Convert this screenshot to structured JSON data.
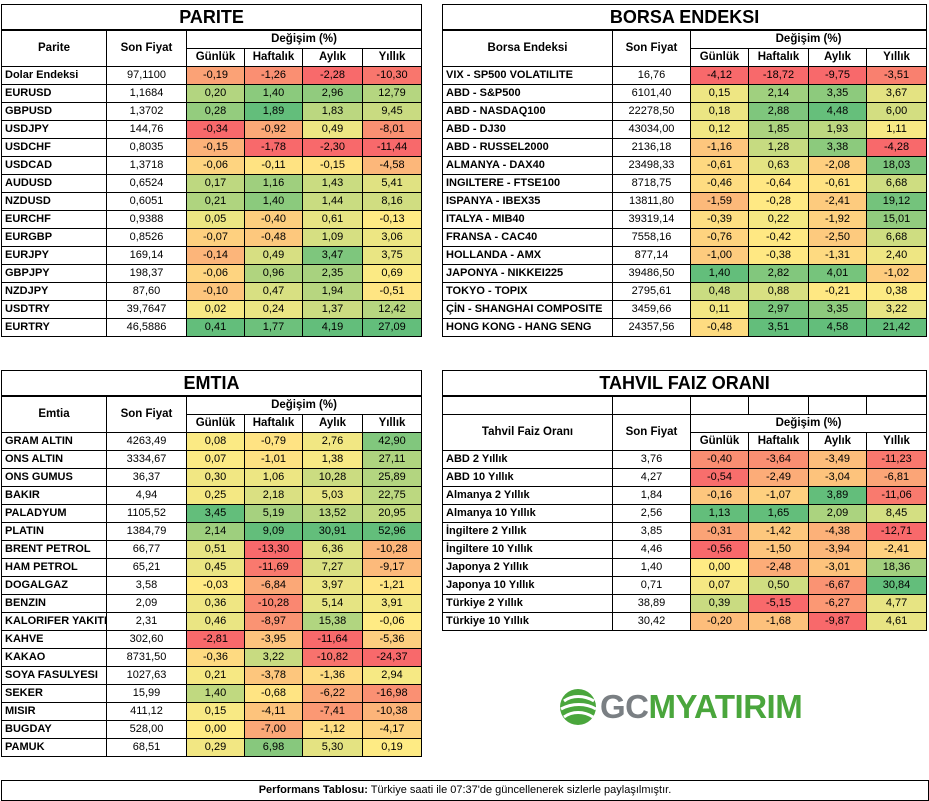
{
  "columns": {
    "change_header": "Değişim (%)",
    "price": "Son Fiyat",
    "daily": "Günlük",
    "weekly": "Haftalık",
    "monthly": "Aylık",
    "yearly": "Yıllık"
  },
  "parite": {
    "title": "PARITE",
    "name_header": "Parite",
    "rows": [
      {
        "name": "Dolar Endeksi",
        "price": "97,1100",
        "values": [
          "-0,19",
          "-1,26",
          "-2,28",
          "-10,30"
        ]
      },
      {
        "name": "EURUSD",
        "price": "1,1684",
        "values": [
          "0,20",
          "1,40",
          "2,96",
          "12,79"
        ]
      },
      {
        "name": "GBPUSD",
        "price": "1,3702",
        "values": [
          "0,28",
          "1,89",
          "1,83",
          "9,45"
        ]
      },
      {
        "name": "USDJPY",
        "price": "144,76",
        "values": [
          "-0,34",
          "-0,92",
          "0,49",
          "-8,01"
        ]
      },
      {
        "name": "USDCHF",
        "price": "0,8035",
        "values": [
          "-0,15",
          "-1,78",
          "-2,30",
          "-11,44"
        ]
      },
      {
        "name": "USDCAD",
        "price": "1,3718",
        "values": [
          "-0,06",
          "-0,11",
          "-0,15",
          "-4,58"
        ]
      },
      {
        "name": "AUDUSD",
        "price": "0,6524",
        "values": [
          "0,17",
          "1,16",
          "1,43",
          "5,41"
        ]
      },
      {
        "name": "NZDUSD",
        "price": "0,6051",
        "values": [
          "0,21",
          "1,40",
          "1,44",
          "8,16"
        ]
      },
      {
        "name": "EURCHF",
        "price": "0,9388",
        "values": [
          "0,05",
          "-0,40",
          "0,61",
          "-0,13"
        ]
      },
      {
        "name": "EURGBP",
        "price": "0,8526",
        "values": [
          "-0,07",
          "-0,48",
          "1,09",
          "3,06"
        ]
      },
      {
        "name": "EURJPY",
        "price": "169,14",
        "values": [
          "-0,14",
          "0,49",
          "3,47",
          "3,75"
        ]
      },
      {
        "name": "GBPJPY",
        "price": "198,37",
        "values": [
          "-0,06",
          "0,96",
          "2,35",
          "0,69"
        ]
      },
      {
        "name": "NZDJPY",
        "price": "87,60",
        "values": [
          "-0,10",
          "0,47",
          "1,94",
          "-0,51"
        ]
      },
      {
        "name": "USDTRY",
        "price": "39,7647",
        "values": [
          "0,02",
          "0,24",
          "1,37",
          "12,42"
        ]
      },
      {
        "name": "EURTRY",
        "price": "46,5886",
        "values": [
          "0,41",
          "1,77",
          "4,19",
          "27,09"
        ]
      }
    ]
  },
  "borsa": {
    "title": "BORSA ENDEKSI",
    "name_header": "Borsa Endeksi",
    "rows": [
      {
        "name": "VIX  - SP500 VOLATILITE",
        "price": "16,76",
        "values": [
          "-4,12",
          "-18,72",
          "-9,75",
          "-3,51"
        ]
      },
      {
        "name": "ABD - S&P500",
        "price": "6101,40",
        "values": [
          "0,15",
          "2,14",
          "3,35",
          "3,67"
        ]
      },
      {
        "name": "ABD - NASDAQ100",
        "price": "22278,50",
        "values": [
          "0,18",
          "2,88",
          "4,48",
          "6,00"
        ]
      },
      {
        "name": "ABD - DJ30",
        "price": "43034,00",
        "values": [
          "0,12",
          "1,85",
          "1,93",
          "1,11"
        ]
      },
      {
        "name": "ABD - RUSSEL2000",
        "price": "2136,18",
        "values": [
          "-1,16",
          "1,28",
          "3,38",
          "-4,28"
        ]
      },
      {
        "name": "ALMANYA - DAX40",
        "price": "23498,33",
        "values": [
          "-0,61",
          "0,63",
          "-2,08",
          "18,03"
        ]
      },
      {
        "name": "INGILTERE - FTSE100",
        "price": "8718,75",
        "values": [
          "-0,46",
          "-0,64",
          "-0,61",
          "6,68"
        ]
      },
      {
        "name": "ISPANYA - IBEX35",
        "price": "13811,80",
        "values": [
          "-1,59",
          "-0,28",
          "-2,41",
          "19,12"
        ]
      },
      {
        "name": "ITALYA - MIB40",
        "price": "39319,14",
        "values": [
          "-0,39",
          "0,22",
          "-1,92",
          "15,01"
        ]
      },
      {
        "name": "FRANSA - CAC40",
        "price": "7558,16",
        "values": [
          "-0,76",
          "-0,42",
          "-2,50",
          "6,68"
        ]
      },
      {
        "name": "HOLLANDA - AMX",
        "price": "877,14",
        "values": [
          "-1,00",
          "-0,38",
          "-1,31",
          "2,40"
        ]
      },
      {
        "name": "JAPONYA - NIKKEI225",
        "price": "39486,50",
        "values": [
          "1,40",
          "2,82",
          "4,01",
          "-1,02"
        ]
      },
      {
        "name": "TOKYO - TOPIX",
        "price": "2795,61",
        "values": [
          "0,48",
          "0,88",
          "-0,21",
          "0,38"
        ]
      },
      {
        "name": "ÇİN - SHANGHAI COMPOSITE",
        "price": "3459,66",
        "values": [
          "0,11",
          "2,97",
          "3,35",
          "3,22"
        ]
      },
      {
        "name": "HONG KONG - HANG SENG",
        "price": "24357,56",
        "values": [
          "-0,48",
          "3,51",
          "4,58",
          "21,42"
        ]
      }
    ]
  },
  "emtia": {
    "title": "EMTIA",
    "name_header": "Emtia",
    "rows": [
      {
        "name": "GRAM ALTIN",
        "price": "4263,49",
        "values": [
          "0,08",
          "-0,79",
          "2,76",
          "42,90"
        ]
      },
      {
        "name": "ONS ALTIN",
        "price": "3334,67",
        "values": [
          "0,07",
          "-1,01",
          "1,38",
          "27,11"
        ]
      },
      {
        "name": "ONS GUMUS",
        "price": "36,37",
        "values": [
          "0,30",
          "1,06",
          "10,28",
          "25,89"
        ]
      },
      {
        "name": "BAKIR",
        "price": "4,94",
        "values": [
          "0,25",
          "2,18",
          "5,03",
          "22,75"
        ]
      },
      {
        "name": "PALADYUM",
        "price": "1105,52",
        "values": [
          "3,45",
          "5,19",
          "13,52",
          "20,95"
        ]
      },
      {
        "name": "PLATIN",
        "price": "1384,79",
        "values": [
          "2,14",
          "9,09",
          "30,91",
          "52,96"
        ]
      },
      {
        "name": "BRENT PETROL",
        "price": "66,77",
        "values": [
          "0,51",
          "-13,30",
          "6,36",
          "-10,28"
        ]
      },
      {
        "name": "HAM PETROL",
        "price": "65,21",
        "values": [
          "0,45",
          "-11,69",
          "7,27",
          "-9,17"
        ]
      },
      {
        "name": "DOGALGAZ",
        "price": "3,58",
        "values": [
          "-0,03",
          "-6,84",
          "3,97",
          "-1,21"
        ]
      },
      {
        "name": "BENZIN",
        "price": "2,09",
        "values": [
          "0,36",
          "-10,28",
          "5,14",
          "3,91"
        ]
      },
      {
        "name": "KALORIFER YAKITI",
        "price": "2,31",
        "values": [
          "0,46",
          "-8,97",
          "15,38",
          "-0,06"
        ]
      },
      {
        "name": "KAHVE",
        "price": "302,60",
        "values": [
          "-2,81",
          "-3,95",
          "-11,64",
          "-5,36"
        ]
      },
      {
        "name": "KAKAO",
        "price": "8731,50",
        "values": [
          "-0,36",
          "3,22",
          "-10,82",
          "-24,37"
        ]
      },
      {
        "name": "SOYA FASULYESI",
        "price": "1027,63",
        "values": [
          "0,21",
          "-3,78",
          "-1,36",
          "2,94"
        ]
      },
      {
        "name": "SEKER",
        "price": "15,99",
        "values": [
          "1,40",
          "-0,68",
          "-6,22",
          "-16,98"
        ]
      },
      {
        "name": "MISIR",
        "price": "411,12",
        "values": [
          "0,15",
          "-4,11",
          "-7,41",
          "-10,38"
        ]
      },
      {
        "name": "BUGDAY",
        "price": "528,00",
        "values": [
          "0,00",
          "-7,00",
          "-1,12",
          "-4,17"
        ]
      },
      {
        "name": "PAMUK",
        "price": "68,51",
        "values": [
          "0,29",
          "6,98",
          "5,30",
          "0,19"
        ]
      }
    ]
  },
  "tahvil": {
    "title": "TAHVIL FAIZ ORANI",
    "name_header": "Tahvil Faiz Oranı",
    "rows": [
      {
        "name": "ABD 2 Yıllık",
        "price": "3,76",
        "values": [
          "-0,40",
          "-3,64",
          "-3,49",
          "-11,23"
        ]
      },
      {
        "name": "ABD 10 Yıllık",
        "price": "4,27",
        "values": [
          "-0,54",
          "-2,49",
          "-3,04",
          "-6,81"
        ]
      },
      {
        "name": "Almanya 2 Yıllık",
        "price": "1,84",
        "values": [
          "-0,16",
          "-1,07",
          "3,89",
          "-11,06"
        ]
      },
      {
        "name": "Almanya 10 Yıllık",
        "price": "2,56",
        "values": [
          "1,13",
          "1,65",
          "2,09",
          "8,45"
        ]
      },
      {
        "name": "İngiltere 2 Yıllık",
        "price": "3,85",
        "values": [
          "-0,31",
          "-1,42",
          "-4,38",
          "-12,71"
        ]
      },
      {
        "name": "İngiltere 10 Yıllık",
        "price": "4,46",
        "values": [
          "-0,56",
          "-1,50",
          "-3,94",
          "-2,41"
        ]
      },
      {
        "name": "Japonya 2 Yıllık",
        "price": "1,40",
        "values": [
          "0,00",
          "-2,48",
          "-3,01",
          "18,36"
        ]
      },
      {
        "name": "Japonya 10 Yıllık",
        "price": "0,71",
        "values": [
          "0,07",
          "0,50",
          "-6,67",
          "30,84"
        ]
      },
      {
        "name": "Türkiye 2 Yıllık",
        "price": "38,89",
        "values": [
          "0,39",
          "-5,15",
          "-6,27",
          "4,77"
        ]
      },
      {
        "name": "Türkiye 10 Yıllık",
        "price": "30,42",
        "values": [
          "-0,20",
          "-1,68",
          "-9,87",
          "4,61"
        ]
      }
    ]
  },
  "footer": {
    "label": "Performans Tablosu:",
    "text": " Türkiye saati ile 07:37'de güncellenerek sizlerle paylaşılmıştır."
  },
  "logo": {
    "text_gc": "GC",
    "text_m": "M",
    "text_yatirim": "YATIRIM",
    "colors": {
      "grey": "#7a7f83",
      "green": "#4aa63c"
    }
  },
  "scale_colors": {
    "low": "#f8696b",
    "mid": "#ffeb84",
    "high": "#63be7b"
  }
}
